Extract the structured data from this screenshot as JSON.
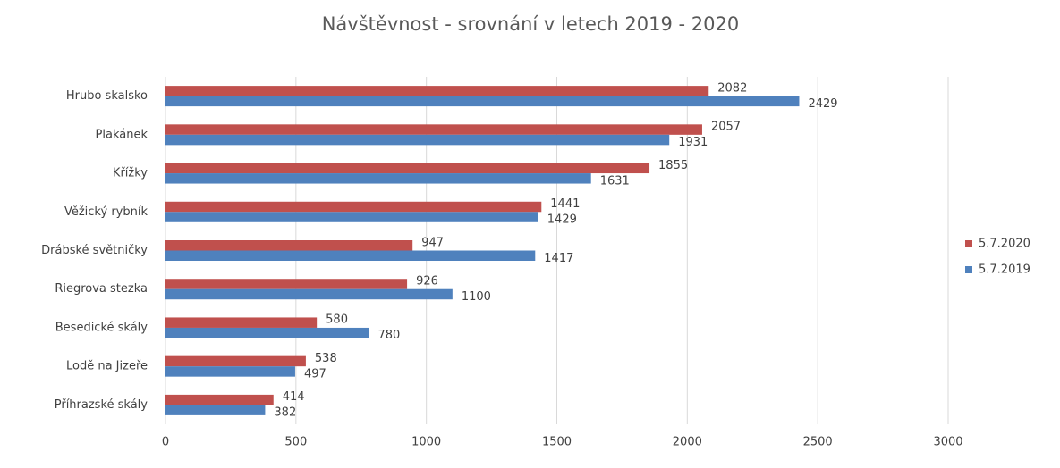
{
  "chart_data": {
    "type": "bar",
    "orientation": "horizontal",
    "title": "Návštěvnost - srovnání v letech 2019 - 2020",
    "categories": [
      "Hrubo skalsko",
      "Plakánek",
      "Křížky",
      "Věžický rybník",
      "Drábské světničky",
      "Riegrova stezka",
      "Besedické skály",
      "Lodě na Jizeře",
      "Příhrazské skály"
    ],
    "series": [
      {
        "name": "5.7.2020",
        "color": "#c0504d",
        "values": [
          2082,
          2057,
          1855,
          1441,
          947,
          926,
          580,
          538,
          414
        ]
      },
      {
        "name": "5.7.2019",
        "color": "#4f81bd",
        "values": [
          2429,
          1931,
          1631,
          1429,
          1417,
          1100,
          780,
          497,
          382
        ]
      }
    ],
    "xlim": [
      0,
      3000
    ],
    "xticks": [
      0,
      500,
      1000,
      1500,
      2000,
      2500,
      3000
    ],
    "grid": true,
    "legend": "right",
    "data_labels": true
  }
}
